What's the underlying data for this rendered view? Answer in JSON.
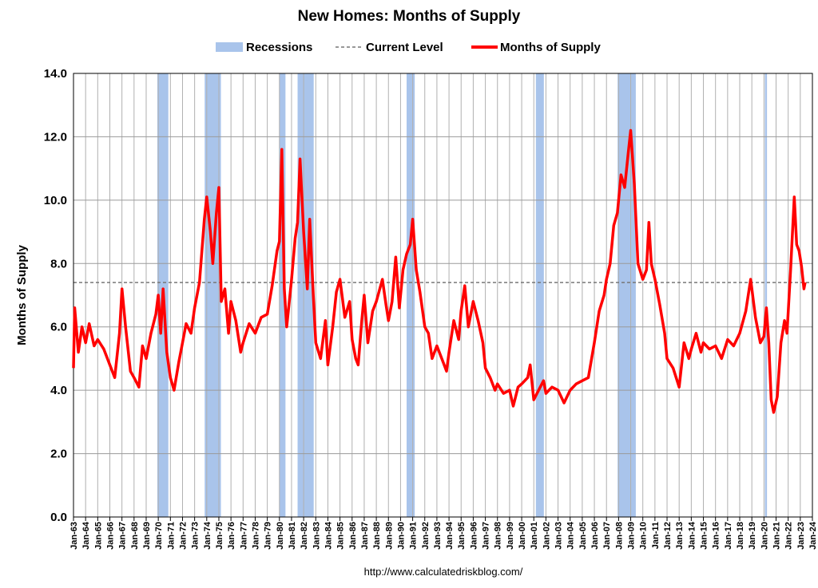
{
  "chart_data": {
    "type": "line",
    "title": "New Homes: Months of Supply",
    "y_label": "Months of Supply",
    "source": "http://www.calculatedriskblog.com/",
    "grid": true,
    "xlim": [
      1963,
      2024
    ],
    "ylim": [
      0,
      14
    ],
    "yticks": [
      {
        "value": 0,
        "label": "0.0"
      },
      {
        "value": 2,
        "label": "2.0"
      },
      {
        "value": 4,
        "label": "4.0"
      },
      {
        "value": 6,
        "label": "6.0"
      },
      {
        "value": 8,
        "label": "8.0"
      },
      {
        "value": 10,
        "label": "10.0"
      },
      {
        "value": 12,
        "label": "12.0"
      },
      {
        "value": 14,
        "label": "14.0"
      }
    ],
    "xticks": [
      {
        "value": 1963,
        "label": "Jan-63"
      },
      {
        "value": 1964,
        "label": "Jan-64"
      },
      {
        "value": 1965,
        "label": "Jan-65"
      },
      {
        "value": 1966,
        "label": "Jan-66"
      },
      {
        "value": 1967,
        "label": "Jan-67"
      },
      {
        "value": 1968,
        "label": "Jan-68"
      },
      {
        "value": 1969,
        "label": "Jan-69"
      },
      {
        "value": 1970,
        "label": "Jan-70"
      },
      {
        "value": 1971,
        "label": "Jan-71"
      },
      {
        "value": 1972,
        "label": "Jan-72"
      },
      {
        "value": 1973,
        "label": "Jan-73"
      },
      {
        "value": 1974,
        "label": "Jan-74"
      },
      {
        "value": 1975,
        "label": "Jan-75"
      },
      {
        "value": 1976,
        "label": "Jan-76"
      },
      {
        "value": 1977,
        "label": "Jan-77"
      },
      {
        "value": 1978,
        "label": "Jan-78"
      },
      {
        "value": 1979,
        "label": "Jan-79"
      },
      {
        "value": 1980,
        "label": "Jan-80"
      },
      {
        "value": 1981,
        "label": "Jan-81"
      },
      {
        "value": 1982,
        "label": "Jan-82"
      },
      {
        "value": 1983,
        "label": "Jan-83"
      },
      {
        "value": 1984,
        "label": "Jan-84"
      },
      {
        "value": 1985,
        "label": "Jan-85"
      },
      {
        "value": 1986,
        "label": "Jan-86"
      },
      {
        "value": 1987,
        "label": "Jan-87"
      },
      {
        "value": 1988,
        "label": "Jan-88"
      },
      {
        "value": 1989,
        "label": "Jan-89"
      },
      {
        "value": 1990,
        "label": "Jan-90"
      },
      {
        "value": 1991,
        "label": "Jan-91"
      },
      {
        "value": 1992,
        "label": "Jan-92"
      },
      {
        "value": 1993,
        "label": "Jan-93"
      },
      {
        "value": 1994,
        "label": "Jan-94"
      },
      {
        "value": 1995,
        "label": "Jan-95"
      },
      {
        "value": 1996,
        "label": "Jan-96"
      },
      {
        "value": 1997,
        "label": "Jan-97"
      },
      {
        "value": 1998,
        "label": "Jan-98"
      },
      {
        "value": 1999,
        "label": "Jan-99"
      },
      {
        "value": 2000,
        "label": "Jan-00"
      },
      {
        "value": 2001,
        "label": "Jan-01"
      },
      {
        "value": 2002,
        "label": "Jan-02"
      },
      {
        "value": 2003,
        "label": "Jan-03"
      },
      {
        "value": 2004,
        "label": "Jan-04"
      },
      {
        "value": 2005,
        "label": "Jan-05"
      },
      {
        "value": 2006,
        "label": "Jan-06"
      },
      {
        "value": 2007,
        "label": "Jan-07"
      },
      {
        "value": 2008,
        "label": "Jan-08"
      },
      {
        "value": 2009,
        "label": "Jan-09"
      },
      {
        "value": 2010,
        "label": "Jan-10"
      },
      {
        "value": 2011,
        "label": "Jan-11"
      },
      {
        "value": 2012,
        "label": "Jan-12"
      },
      {
        "value": 2013,
        "label": "Jan-13"
      },
      {
        "value": 2014,
        "label": "Jan-14"
      },
      {
        "value": 2015,
        "label": "Jan-15"
      },
      {
        "value": 2016,
        "label": "Jan-16"
      },
      {
        "value": 2017,
        "label": "Jan-17"
      },
      {
        "value": 2018,
        "label": "Jan-18"
      },
      {
        "value": 2019,
        "label": "Jan-19"
      },
      {
        "value": 2020,
        "label": "Jan-20"
      },
      {
        "value": 2021,
        "label": "Jan-21"
      },
      {
        "value": 2022,
        "label": "Jan-22"
      },
      {
        "value": 2023,
        "label": "Jan-23"
      },
      {
        "value": 2024,
        "label": "Jan-24"
      }
    ],
    "recessions": {
      "name": "Recessions",
      "color": "#a9c4eb",
      "spans": [
        [
          1969.92,
          1970.83
        ],
        [
          1973.83,
          1975.17
        ],
        [
          1980.0,
          1980.5
        ],
        [
          1981.5,
          1982.83
        ],
        [
          1990.5,
          1991.17
        ],
        [
          2001.17,
          2001.83
        ],
        [
          2007.92,
          2009.42
        ],
        [
          2020.08,
          2020.25
        ]
      ]
    },
    "current_level": {
      "name": "Current Level",
      "value": 7.4,
      "color": "#777777"
    },
    "series": [
      {
        "name": "Months of Supply",
        "color": "#ff0000",
        "x": [
          1963.0,
          1963.1,
          1963.4,
          1963.7,
          1964.0,
          1964.3,
          1964.7,
          1965.0,
          1965.5,
          1966.0,
          1966.4,
          1966.8,
          1967.0,
          1967.3,
          1967.7,
          1968.0,
          1968.4,
          1968.7,
          1969.0,
          1969.4,
          1969.8,
          1970.0,
          1970.2,
          1970.4,
          1970.7,
          1971.0,
          1971.3,
          1971.7,
          1972.0,
          1972.3,
          1972.7,
          1973.0,
          1973.4,
          1973.8,
          1974.0,
          1974.3,
          1974.5,
          1974.8,
          1975.0,
          1975.2,
          1975.5,
          1975.8,
          1976.0,
          1976.4,
          1976.8,
          1977.0,
          1977.5,
          1978.0,
          1978.5,
          1979.0,
          1979.4,
          1979.8,
          1980.0,
          1980.2,
          1980.4,
          1980.6,
          1981.0,
          1981.3,
          1981.5,
          1981.7,
          1982.0,
          1982.3,
          1982.5,
          1982.8,
          1983.0,
          1983.4,
          1983.8,
          1984.0,
          1984.4,
          1984.7,
          1985.0,
          1985.4,
          1985.8,
          1986.0,
          1986.3,
          1986.5,
          1986.8,
          1987.0,
          1987.3,
          1987.7,
          1988.0,
          1988.5,
          1988.8,
          1989.0,
          1989.3,
          1989.6,
          1989.9,
          1990.2,
          1990.5,
          1990.8,
          1991.0,
          1991.3,
          1991.6,
          1992.0,
          1992.3,
          1992.6,
          1993.0,
          1993.4,
          1993.8,
          1994.0,
          1994.4,
          1994.8,
          1995.0,
          1995.3,
          1995.6,
          1996.0,
          1996.4,
          1996.8,
          1997.0,
          1997.4,
          1997.8,
          1998.0,
          1998.5,
          1999.0,
          1999.3,
          1999.7,
          2000.0,
          2000.5,
          2000.7,
          2001.0,
          2001.4,
          2001.8,
          2002.0,
          2002.5,
          2003.0,
          2003.5,
          2004.0,
          2004.5,
          2005.0,
          2005.5,
          2006.0,
          2006.4,
          2006.8,
          2007.0,
          2007.3,
          2007.6,
          2007.9,
          2008.2,
          2008.5,
          2008.8,
          2009.0,
          2009.3,
          2009.6,
          2010.0,
          2010.3,
          2010.5,
          2010.7,
          2011.0,
          2011.4,
          2011.8,
          2012.0,
          2012.5,
          2013.0,
          2013.4,
          2013.8,
          2014.0,
          2014.4,
          2014.8,
          2015.0,
          2015.5,
          2016.0,
          2016.5,
          2017.0,
          2017.5,
          2018.0,
          2018.5,
          2018.9,
          2019.3,
          2019.7,
          2020.0,
          2020.2,
          2020.4,
          2020.6,
          2020.8,
          2021.1,
          2021.4,
          2021.7,
          2021.9,
          2022.2,
          2022.5,
          2022.7,
          2022.9,
          2023.1,
          2023.3,
          2023.4
        ],
        "values": [
          4.7,
          6.6,
          5.2,
          6.0,
          5.5,
          6.1,
          5.4,
          5.6,
          5.3,
          4.8,
          4.4,
          5.8,
          7.2,
          6.0,
          4.6,
          4.4,
          4.1,
          5.4,
          5.0,
          5.8,
          6.4,
          7.0,
          5.8,
          7.2,
          5.2,
          4.4,
          4.0,
          4.9,
          5.5,
          6.1,
          5.8,
          6.6,
          7.4,
          9.4,
          10.1,
          9.0,
          8.0,
          9.6,
          10.4,
          6.8,
          7.2,
          5.8,
          6.8,
          6.2,
          5.2,
          5.5,
          6.1,
          5.8,
          6.3,
          6.4,
          7.3,
          8.4,
          8.7,
          11.6,
          7.2,
          6.0,
          7.5,
          8.8,
          9.3,
          11.3,
          9.0,
          7.2,
          9.4,
          7.0,
          5.5,
          5.0,
          6.2,
          4.8,
          6.0,
          7.1,
          7.5,
          6.3,
          6.8,
          5.6,
          5.0,
          4.8,
          6.2,
          7.0,
          5.5,
          6.5,
          6.8,
          7.5,
          6.7,
          6.2,
          6.8,
          8.2,
          6.6,
          7.8,
          8.3,
          8.6,
          9.4,
          7.8,
          7.1,
          6.0,
          5.8,
          5.0,
          5.4,
          5.0,
          4.6,
          5.2,
          6.2,
          5.6,
          6.5,
          7.3,
          6.0,
          6.8,
          6.2,
          5.5,
          4.7,
          4.4,
          4.0,
          4.2,
          3.9,
          4.0,
          3.5,
          4.1,
          4.2,
          4.4,
          4.8,
          3.7,
          4.0,
          4.3,
          3.9,
          4.1,
          4.0,
          3.6,
          4.0,
          4.2,
          4.3,
          4.4,
          5.5,
          6.5,
          7.0,
          7.5,
          8.0,
          9.2,
          9.6,
          10.8,
          10.4,
          11.5,
          12.2,
          10.5,
          8.0,
          7.5,
          7.8,
          9.3,
          8.0,
          7.5,
          6.7,
          5.8,
          5.0,
          4.7,
          4.1,
          5.5,
          5.0,
          5.3,
          5.8,
          5.2,
          5.5,
          5.3,
          5.4,
          5.0,
          5.6,
          5.4,
          5.8,
          6.5,
          7.5,
          6.3,
          5.5,
          5.7,
          6.6,
          5.5,
          3.7,
          3.3,
          3.8,
          5.5,
          6.2,
          5.8,
          7.8,
          10.1,
          8.6,
          8.4,
          7.9,
          7.2,
          7.4
        ]
      }
    ]
  }
}
